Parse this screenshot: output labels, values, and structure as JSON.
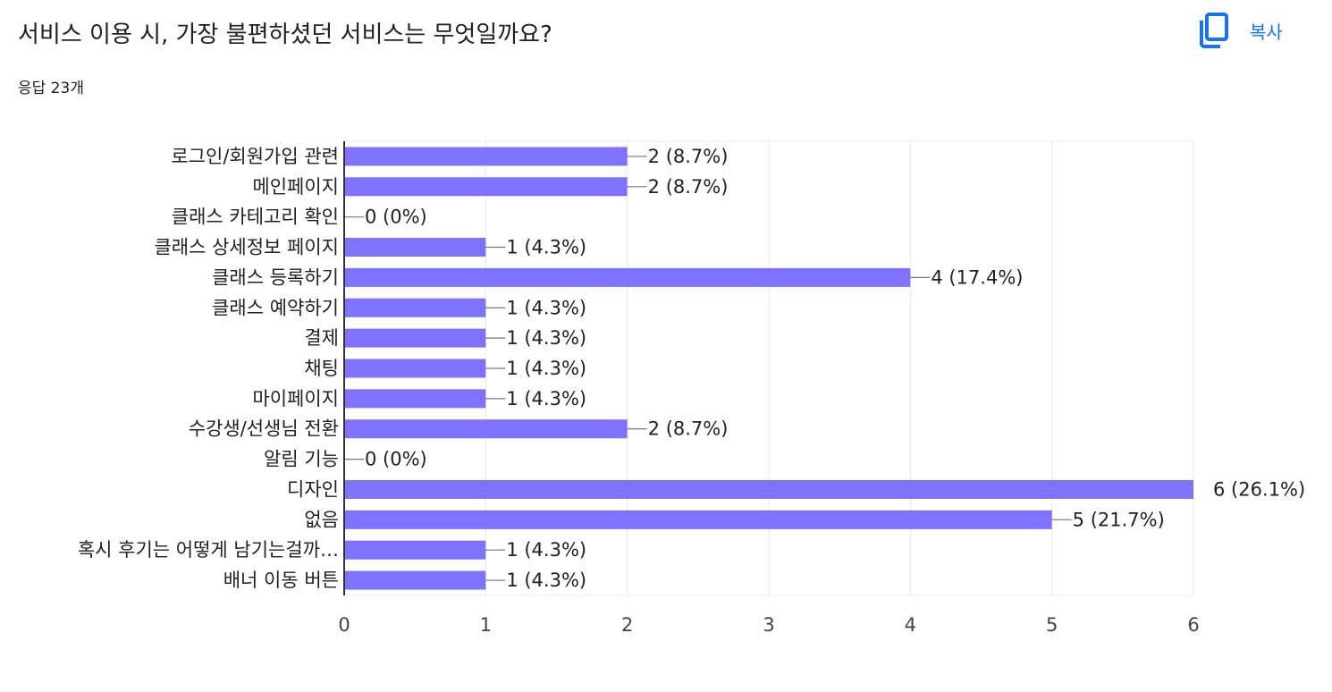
{
  "question": {
    "title": "서비스 이용 시, 가장 불편하셨던 서비스는 무엇일까요?",
    "response_count": "응답 23개"
  },
  "toolbar": {
    "copy_label": "복사",
    "copy_icon": "copy-icon",
    "accent_color": "#1a73e8"
  },
  "chart_data": {
    "type": "bar",
    "orientation": "horizontal",
    "categories": [
      "로그인/회원가입 관련",
      "메인페이지",
      "클래스 카테고리 확인",
      "클래스 상세정보 페이지",
      "클래스 등록하기",
      "클래스 예약하기",
      "결제",
      "채팅",
      "마이페이지",
      "수강생/선생님 전환",
      "알림 기능",
      "디자인",
      "없음",
      "혹시 후기는 어떻게 남기는걸까…",
      "배너 이동 버튼"
    ],
    "values": [
      2,
      2,
      0,
      1,
      4,
      1,
      1,
      1,
      1,
      2,
      0,
      6,
      5,
      1,
      1
    ],
    "data_labels": [
      "2 (8.7%)",
      "2 (8.7%)",
      "0 (0%)",
      "1 (4.3%)",
      "4 (17.4%)",
      "1 (4.3%)",
      "1 (4.3%)",
      "1 (4.3%)",
      "1 (4.3%)",
      "2 (8.7%)",
      "0 (0%)",
      "6 (26.1%)",
      "5 (21.7%)",
      "1 (4.3%)",
      "1 (4.3%)"
    ],
    "xlim": [
      0,
      6
    ],
    "xticks": [
      0,
      1,
      2,
      3,
      4,
      5,
      6
    ],
    "bar_color": "#7e72ff",
    "grid": true,
    "legend": "none"
  }
}
